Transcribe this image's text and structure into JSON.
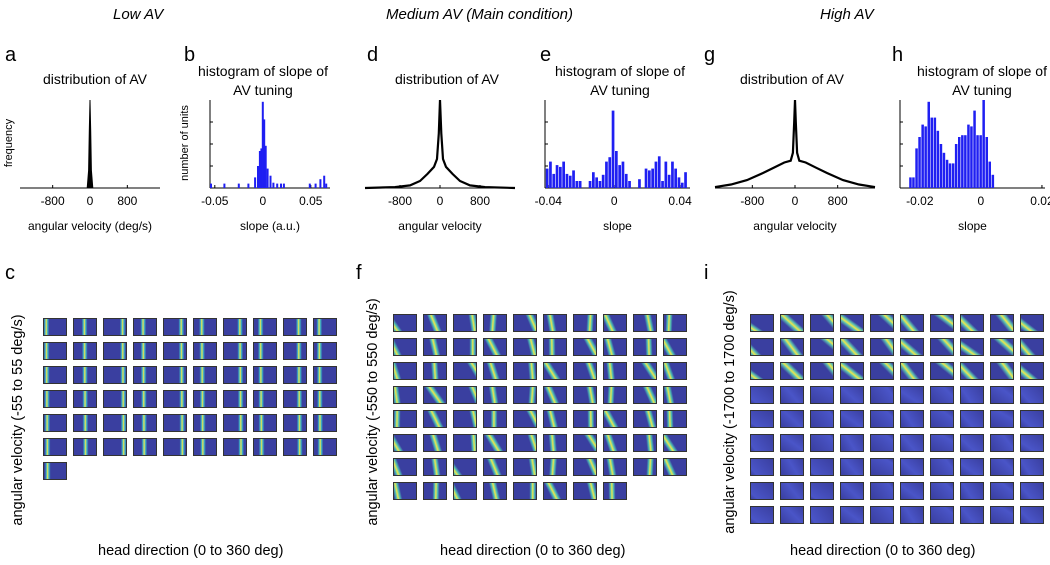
{
  "conditions": {
    "low": "Low AV",
    "medium": "Medium AV (Main condition)",
    "high": "High AV"
  },
  "panel_letters": {
    "a": "a",
    "b": "b",
    "c": "c",
    "d": "d",
    "e": "e",
    "f": "f",
    "g": "g",
    "h": "h",
    "i": "i"
  },
  "colors": {
    "bar": "#1f1ff2",
    "line": "#000000",
    "tile_dark": "#3a3fa0",
    "tile_bright": "#f2e64a"
  },
  "chart_data": [
    {
      "id": "a",
      "type": "area",
      "title": "distribution of AV",
      "xlabel": "angular velocity (deg/s)",
      "ylabel": "frequency",
      "xticks": [
        "-800",
        "0",
        "800"
      ],
      "xlim": [
        -1500,
        1500
      ],
      "curve": {
        "x": [
          -1500,
          -60,
          -30,
          -15,
          0,
          15,
          30,
          60,
          1500
        ],
        "y": [
          0,
          0,
          0.2,
          0.65,
          1.0,
          0.65,
          0.2,
          0,
          0
        ]
      },
      "filled": true
    },
    {
      "id": "b",
      "type": "bar",
      "title": "histogram of slope of AV tuning",
      "xlabel": "slope (a.u.)",
      "ylabel": "number of units",
      "xticks": [
        "-0.05",
        "0",
        "0.05"
      ],
      "xlim": [
        -0.055,
        0.07
      ],
      "bins": [
        -0.054,
        -0.04,
        -0.025,
        -0.015,
        -0.008,
        -0.005,
        -0.003,
        -0.0015,
        0.0,
        0.0015,
        0.003,
        0.005,
        0.008,
        0.011,
        0.015,
        0.019,
        0.022,
        0.049,
        0.055,
        0.06,
        0.064,
        0.066
      ],
      "values": [
        0.05,
        0.05,
        0.05,
        0.05,
        0.12,
        0.25,
        0.42,
        0.45,
        0.98,
        0.78,
        0.48,
        0.22,
        0.14,
        0.06,
        0.05,
        0.05,
        0.05,
        0.05,
        0.05,
        0.1,
        0.14,
        0.05
      ]
    },
    {
      "id": "d",
      "type": "line",
      "title": "distribution of AV",
      "xlabel": "angular velocity",
      "xticks": [
        "-800",
        "0",
        "800"
      ],
      "xlim": [
        -1500,
        1500
      ],
      "curve": {
        "x": [
          -1500,
          -900,
          -600,
          -400,
          -250,
          -120,
          -60,
          -25,
          0,
          25,
          60,
          120,
          250,
          400,
          600,
          900,
          1500
        ],
        "y": [
          0,
          0.01,
          0.03,
          0.08,
          0.16,
          0.24,
          0.33,
          0.62,
          1.0,
          0.62,
          0.33,
          0.24,
          0.16,
          0.08,
          0.03,
          0.01,
          0
        ]
      }
    },
    {
      "id": "e",
      "type": "bar",
      "title": "histogram of slope of AV tuning",
      "xlabel": "slope",
      "xticks": [
        "-0.04",
        "0",
        "0.04"
      ],
      "xlim": [
        -0.042,
        0.046
      ],
      "values_by_bin_start": -0.0415,
      "bin_width": 0.002,
      "values": [
        0.22,
        0.3,
        0.16,
        0.26,
        0.24,
        0.3,
        0.16,
        0.14,
        0.2,
        0.08,
        0.08,
        0,
        0,
        0.08,
        0.18,
        0.12,
        0.08,
        0.15,
        0.3,
        0.35,
        0.88,
        0.42,
        0.26,
        0.3,
        0.16,
        0.08,
        0,
        0,
        0.1,
        0,
        0.22,
        0.2,
        0.22,
        0.3,
        0.36,
        0.08,
        0.3,
        0.15,
        0.3,
        0.22,
        0.12,
        0.06,
        0.18
      ]
    },
    {
      "id": "g",
      "type": "line",
      "title": "distribution of AV",
      "xlabel": "angular velocity",
      "xticks": [
        "-800",
        "0",
        "800"
      ],
      "xlim": [
        -1500,
        1500
      ],
      "curve": {
        "x": [
          -1500,
          -1200,
          -900,
          -600,
          -400,
          -200,
          -80,
          -40,
          -15,
          0,
          15,
          40,
          80,
          200,
          400,
          600,
          900,
          1200,
          1500
        ],
        "y": [
          0.01,
          0.04,
          0.09,
          0.17,
          0.23,
          0.29,
          0.31,
          0.4,
          0.75,
          1.0,
          0.75,
          0.4,
          0.31,
          0.29,
          0.23,
          0.17,
          0.09,
          0.04,
          0.01
        ]
      }
    },
    {
      "id": "h",
      "type": "bar",
      "title": "histogram of slope of AV tuning",
      "xlabel": "slope",
      "xticks": [
        "-0.02",
        "0",
        "0.02"
      ],
      "xlim": [
        -0.0265,
        0.021
      ],
      "values_by_bin_start": -0.0235,
      "bin_width": 0.001,
      "values": [
        0.12,
        0.12,
        0.45,
        0.58,
        0.72,
        0.7,
        0.98,
        0.8,
        0.8,
        0.65,
        0.5,
        0.4,
        0.32,
        0.28,
        0.28,
        0.5,
        0.58,
        0.6,
        0.6,
        0.72,
        0.7,
        0.88,
        0.6,
        0.6,
        1.0,
        0.58,
        0.3,
        0.15
      ]
    }
  ],
  "heatmap_panels": [
    {
      "id": "c",
      "ylabel": "angular velocity (-55 to 55 deg/s)",
      "xlabel": "head direction (0 to 360 deg)",
      "rows": 7,
      "cols": 10,
      "count": 61
    },
    {
      "id": "f",
      "ylabel": "angular velocity (-550 to 550 deg/s)",
      "xlabel": "head direction (0 to 360 deg)",
      "rows": 9,
      "cols": 10,
      "count": 78
    },
    {
      "id": "i",
      "ylabel": "angular velocity (-1700 to 1700 deg/s)",
      "xlabel": "head direction (0 to 360 deg)",
      "rows": 9,
      "cols": 10,
      "count": 90
    }
  ]
}
